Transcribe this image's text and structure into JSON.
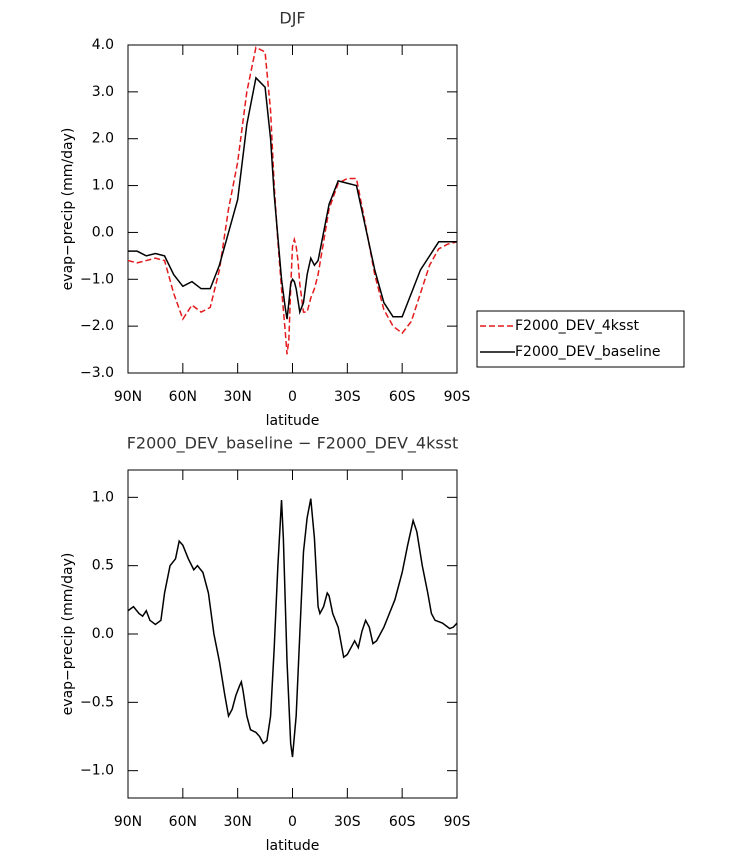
{
  "chart_data": [
    {
      "type": "line",
      "title": "DJF",
      "x_label": "latitude",
      "y_label": "evap−precip (mm/day)",
      "x": [
        90,
        85,
        80,
        75,
        70,
        65,
        60,
        55,
        50,
        45,
        40,
        35,
        30,
        25,
        20,
        15,
        12,
        10,
        8,
        6,
        4,
        3,
        2,
        1,
        0,
        -1,
        -2,
        -3,
        -4,
        -6,
        -8,
        -10,
        -12,
        -14,
        -17,
        -20,
        -25,
        -30,
        -35,
        -40,
        -45,
        -50,
        -55,
        -60,
        -65,
        -70,
        -75,
        -80,
        -85,
        -90
      ],
      "series": [
        {
          "name": "F2000_DEV_4ksst",
          "color": "#e41a1c",
          "dashed": true,
          "values": [
            -0.6,
            -0.65,
            -0.6,
            -0.55,
            -0.6,
            -1.3,
            -1.85,
            -1.55,
            -1.7,
            -1.6,
            -0.8,
            0.5,
            1.5,
            3.0,
            3.95,
            3.85,
            2.6,
            1.0,
            -0.2,
            -1.2,
            -2.1,
            -2.6,
            -2.3,
            -1.2,
            -0.3,
            -0.15,
            -0.3,
            -0.6,
            -1.1,
            -1.7,
            -1.7,
            -1.4,
            -1.2,
            -0.9,
            -0.2,
            0.5,
            1.05,
            1.15,
            1.15,
            0.15,
            -0.9,
            -1.65,
            -2.0,
            -2.15,
            -1.9,
            -1.3,
            -0.7,
            -0.35,
            -0.25,
            -0.2
          ]
        },
        {
          "name": "F2000_DEV_baseline",
          "color": "#000000",
          "dashed": false,
          "values": [
            -0.4,
            -0.4,
            -0.5,
            -0.45,
            -0.5,
            -0.9,
            -1.15,
            -1.05,
            -1.2,
            -1.2,
            -0.7,
            0.0,
            0.7,
            2.3,
            3.3,
            3.1,
            2.0,
            0.8,
            -0.1,
            -1.0,
            -1.6,
            -1.85,
            -1.5,
            -1.1,
            -1.0,
            -1.05,
            -1.2,
            -1.45,
            -1.7,
            -1.5,
            -0.9,
            -0.55,
            -0.7,
            -0.6,
            0.0,
            0.6,
            1.1,
            1.05,
            1.0,
            0.1,
            -0.8,
            -1.5,
            -1.8,
            -1.8,
            -1.3,
            -0.8,
            -0.5,
            -0.2,
            -0.2,
            -0.2
          ]
        }
      ],
      "xlim": [
        90,
        -90
      ],
      "xticks": [
        {
          "value": 90,
          "label": "90N"
        },
        {
          "value": 60,
          "label": "60N"
        },
        {
          "value": 30,
          "label": "30N"
        },
        0,
        {
          "value": -30,
          "label": "30S"
        },
        {
          "value": -60,
          "label": "60S"
        },
        {
          "value": -90,
          "label": "90S"
        }
      ],
      "ylim": [
        -3,
        4
      ],
      "yticks": [
        {
          "value": -3,
          "label": "−3.0"
        },
        {
          "value": -2,
          "label": "−2.0"
        },
        {
          "value": -1,
          "label": "−1.0"
        },
        {
          "value": 0,
          "label": "0.0"
        },
        {
          "value": 1,
          "label": "1.0"
        },
        {
          "value": 2,
          "label": "2.0"
        },
        {
          "value": 3,
          "label": "3.0"
        },
        {
          "value": 4,
          "label": "4.0"
        }
      ],
      "legend": "right"
    },
    {
      "type": "line",
      "title": "F2000_DEV_baseline − F2000_DEV_4ksst",
      "x_label": "latitude",
      "y_label": "evap−precip (mm/day)",
      "x": [
        90,
        87,
        84,
        82,
        80,
        78,
        75,
        72,
        70,
        67,
        64,
        62,
        60,
        57,
        54,
        52,
        49,
        46,
        43,
        40,
        37,
        35,
        33,
        31,
        29,
        28,
        27,
        25,
        23,
        20,
        18,
        16,
        14,
        12,
        10,
        8,
        6,
        5,
        3,
        1,
        0,
        -2,
        -4,
        -6,
        -8,
        -10,
        -12,
        -14,
        -15,
        -17,
        -19,
        -20,
        -22,
        -25,
        -28,
        -30,
        -32,
        -34,
        -36,
        -38,
        -40,
        -42,
        -44,
        -46,
        -50,
        -53,
        -56,
        -60,
        -63,
        -66,
        -68,
        -71,
        -74,
        -76,
        -78,
        -82,
        -86,
        -88,
        -90
      ],
      "color": "#000000",
      "values": [
        0.17,
        0.2,
        0.15,
        0.13,
        0.17,
        0.1,
        0.07,
        0.1,
        0.3,
        0.5,
        0.55,
        0.68,
        0.65,
        0.55,
        0.47,
        0.5,
        0.45,
        0.3,
        0.0,
        -0.2,
        -0.45,
        -0.6,
        -0.55,
        -0.45,
        -0.38,
        -0.35,
        -0.42,
        -0.6,
        -0.7,
        -0.72,
        -0.75,
        -0.8,
        -0.78,
        -0.6,
        -0.1,
        0.5,
        0.98,
        0.7,
        -0.2,
        -0.8,
        -0.9,
        -0.6,
        0.0,
        0.6,
        0.85,
        0.99,
        0.7,
        0.2,
        0.15,
        0.2,
        0.3,
        0.28,
        0.15,
        0.05,
        -0.17,
        -0.15,
        -0.1,
        -0.05,
        -0.1,
        0.02,
        0.1,
        0.05,
        -0.07,
        -0.05,
        0.05,
        0.15,
        0.25,
        0.45,
        0.65,
        0.83,
        0.75,
        0.5,
        0.3,
        0.15,
        0.1,
        0.08,
        0.04,
        0.05,
        0.08
      ],
      "xlim": [
        90,
        -90
      ],
      "xticks": [
        {
          "value": 90,
          "label": "90N"
        },
        {
          "value": 60,
          "label": "60N"
        },
        {
          "value": 30,
          "label": "30N"
        },
        0,
        {
          "value": -30,
          "label": "30S"
        },
        {
          "value": -60,
          "label": "60S"
        },
        {
          "value": -90,
          "label": "90S"
        }
      ],
      "ylim": [
        -1.2,
        1.2
      ],
      "yticks": [
        {
          "value": -1,
          "label": "−1.0"
        },
        {
          "value": -0.5,
          "label": "−0.5"
        },
        {
          "value": 0,
          "label": "0.0"
        },
        {
          "value": 0.5,
          "label": "0.5"
        },
        {
          "value": 1,
          "label": "1.0"
        }
      ]
    }
  ]
}
